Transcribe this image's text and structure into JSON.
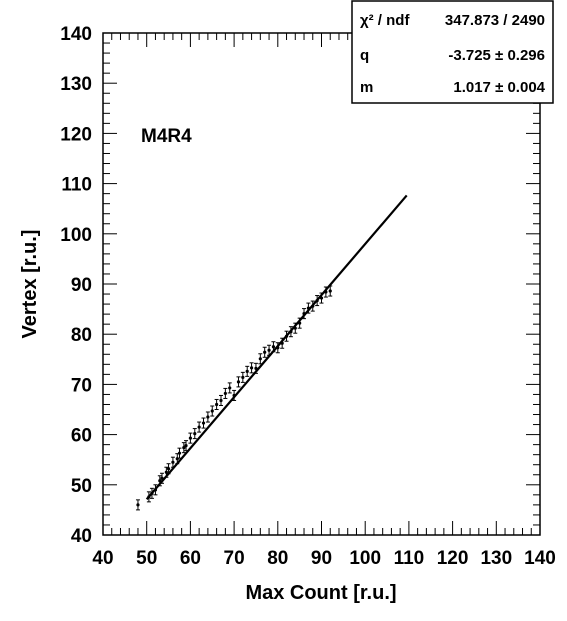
{
  "chart_data": {
    "type": "scatter",
    "title": "",
    "label": "M4R4",
    "xlabel": "Max Count [r.u.]",
    "ylabel": "Vertex [r.u.]",
    "xlim": [
      40,
      140
    ],
    "ylim": [
      40,
      140
    ],
    "x_ticks": [
      "40",
      "50",
      "60",
      "70",
      "80",
      "90",
      "100",
      "110",
      "120",
      "130",
      "140"
    ],
    "y_ticks": [
      "40",
      "50",
      "60",
      "70",
      "80",
      "90",
      "100",
      "110",
      "120",
      "130",
      "140"
    ],
    "grid": false,
    "fit": {
      "function": "linear",
      "x_range": [
        50,
        109.5
      ],
      "stats": [
        {
          "name": "χ² / ndf",
          "value": "347.873 / 2490"
        },
        {
          "name": "q",
          "value": "-3.725 ± 0.296"
        },
        {
          "name": "m",
          "value": "1.017 ± 0.004"
        }
      ],
      "q": -3.725,
      "m": 1.017
    },
    "series": [
      {
        "marker": "point-with-error-bars",
        "x_range": [
          48,
          92
        ],
        "points": [
          [
            48,
            46
          ],
          [
            50.5,
            47.6
          ],
          [
            51.2,
            48.3
          ],
          [
            52,
            49
          ],
          [
            53,
            50.8
          ],
          [
            53.5,
            51.3
          ],
          [
            54.5,
            52.5
          ],
          [
            55,
            53.2
          ],
          [
            56,
            54.5
          ],
          [
            57,
            55.2
          ],
          [
            57.5,
            56.3
          ],
          [
            58.5,
            57.4
          ],
          [
            59,
            57.8
          ],
          [
            60,
            59.3
          ],
          [
            61,
            60.2
          ],
          [
            62,
            61.5
          ],
          [
            63,
            62.3
          ],
          [
            64,
            63.5
          ],
          [
            65,
            64.7
          ],
          [
            66,
            66
          ],
          [
            67,
            66.8
          ],
          [
            68,
            68.2
          ],
          [
            69,
            69.3
          ],
          [
            70,
            67.8
          ],
          [
            71,
            70.5
          ],
          [
            72,
            71.4
          ],
          [
            73,
            72.6
          ],
          [
            74,
            73.3
          ],
          [
            75,
            73.2
          ],
          [
            76,
            75.1
          ],
          [
            77,
            76.4
          ],
          [
            78,
            76.8
          ],
          [
            79,
            77.5
          ],
          [
            80,
            77.3
          ],
          [
            81,
            78.2
          ],
          [
            82,
            79.6
          ],
          [
            83,
            80.5
          ],
          [
            84,
            81.2
          ],
          [
            85,
            82.2
          ],
          [
            86,
            84.1
          ],
          [
            87,
            85.2
          ],
          [
            88,
            85.6
          ],
          [
            89,
            86.7
          ],
          [
            90,
            87.2
          ],
          [
            91,
            88.4
          ],
          [
            92,
            88.6
          ]
        ],
        "y_error": 1.0
      }
    ]
  }
}
